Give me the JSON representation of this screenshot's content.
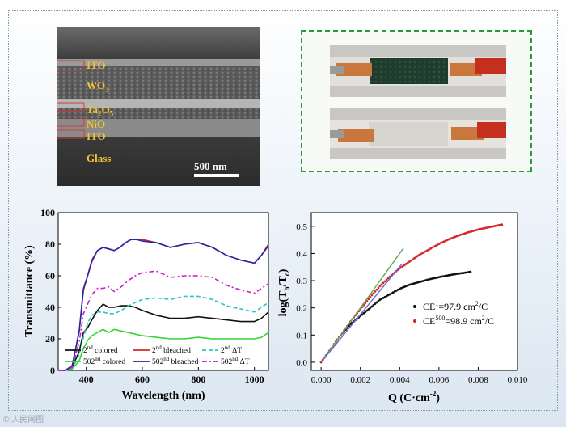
{
  "sem": {
    "layers": [
      {
        "name": "ITO",
        "sub": ""
      },
      {
        "name": "WO",
        "sub": "3"
      },
      {
        "name": "Ta",
        "sub": "2",
        "tail": "O",
        "sub2": "5"
      },
      {
        "name": "NiO",
        "sub": ""
      },
      {
        "name": "ITO",
        "sub": ""
      },
      {
        "name": "Glass",
        "sub": ""
      }
    ],
    "scale_bar": "500 nm"
  },
  "photos": {
    "top_state": "colored",
    "bottom_state": "bleached"
  },
  "colors": {
    "black": "#111111",
    "red": "#d62728",
    "cyan": "#2bc4c9",
    "green": "#33d633",
    "blue": "#2626a8",
    "magenta": "#c71fc7",
    "fit_green": "#58b058",
    "fit_blue": "#6a6ad6",
    "panel_border": "#2a9a3a"
  },
  "watermark": "© 人民网图",
  "chart_data": [
    {
      "type": "line",
      "xlabel": "Wavelength (nm)",
      "ylabel": "Transmittance (%)",
      "xlim": [
        300,
        1050
      ],
      "ylim": [
        0,
        100
      ],
      "xticks": [
        400,
        600,
        800,
        1000
      ],
      "yticks": [
        0,
        20,
        40,
        60,
        80,
        100
      ],
      "legend_position": "bottom",
      "series": [
        {
          "name": "colored",
          "pre": "2",
          "sup": "nd",
          "color": "black",
          "dash": "",
          "x": [
            300,
            325,
            350,
            375,
            390,
            405,
            420,
            440,
            460,
            480,
            500,
            525,
            550,
            575,
            600,
            650,
            700,
            750,
            800,
            850,
            900,
            950,
            1000,
            1025,
            1050
          ],
          "y": [
            0,
            0,
            2,
            12,
            24,
            27,
            32,
            38,
            42,
            40,
            40,
            41,
            41,
            40,
            38,
            35,
            33,
            33,
            34,
            33,
            32,
            31,
            31,
            33,
            37
          ]
        },
        {
          "name": "bleached",
          "pre": "2",
          "sup": "nd",
          "color": "red",
          "dash": "",
          "x": [
            300,
            325,
            350,
            375,
            390,
            405,
            420,
            440,
            460,
            480,
            500,
            520,
            540,
            560,
            580,
            600,
            650,
            700,
            750,
            800,
            850,
            900,
            950,
            1000,
            1025,
            1050
          ],
          "y": [
            0,
            0,
            3,
            25,
            52,
            60,
            70,
            76,
            78,
            77,
            76,
            78,
            81,
            83,
            83,
            83,
            81,
            78,
            80,
            81,
            78,
            73,
            70,
            68,
            73,
            80
          ]
        },
        {
          "name": "ΔT",
          "pre": "2",
          "sup": "nd",
          "color": "cyan",
          "dash": "5,3",
          "x": [
            300,
            325,
            350,
            375,
            390,
            405,
            420,
            440,
            460,
            480,
            500,
            525,
            550,
            575,
            600,
            650,
            700,
            750,
            800,
            850,
            900,
            950,
            1000,
            1025,
            1050
          ],
          "y": [
            0,
            0,
            1,
            10,
            21,
            30,
            35,
            37,
            37,
            36,
            36,
            38,
            41,
            43,
            45,
            46,
            45,
            47,
            47,
            45,
            41,
            39,
            37,
            40,
            43
          ]
        },
        {
          "name": "colored",
          "pre": "502",
          "sup": "nd",
          "color": "green",
          "dash": "",
          "x": [
            300,
            325,
            350,
            375,
            390,
            405,
            420,
            440,
            460,
            480,
            500,
            525,
            550,
            575,
            600,
            650,
            700,
            750,
            800,
            850,
            900,
            950,
            1000,
            1025,
            1050
          ],
          "y": [
            0,
            0,
            1,
            6,
            14,
            19,
            22,
            24,
            26,
            24,
            26,
            25,
            24,
            23,
            22,
            21,
            20,
            20,
            21,
            20,
            20,
            20,
            20,
            21,
            24
          ]
        },
        {
          "name": "bleached",
          "pre": "502",
          "sup": "nd",
          "color": "blue",
          "dash": "",
          "x": [
            300,
            325,
            350,
            375,
            390,
            405,
            420,
            440,
            460,
            480,
            500,
            520,
            540,
            560,
            580,
            600,
            650,
            700,
            750,
            800,
            850,
            900,
            950,
            1000,
            1025,
            1050
          ],
          "y": [
            0,
            0,
            3,
            25,
            51,
            60,
            69,
            76,
            78,
            77,
            76,
            78,
            81,
            83,
            83,
            82,
            81,
            78,
            80,
            81,
            78,
            73,
            70,
            68,
            73,
            79
          ]
        },
        {
          "name": "ΔT",
          "pre": "502",
          "sup": "nd",
          "color": "magenta",
          "dash": "6,3,2,3",
          "x": [
            300,
            325,
            350,
            375,
            390,
            405,
            420,
            440,
            460,
            480,
            500,
            525,
            550,
            575,
            600,
            650,
            700,
            750,
            800,
            850,
            900,
            950,
            1000,
            1025,
            1050
          ],
          "y": [
            0,
            0,
            2,
            18,
            36,
            42,
            48,
            52,
            52,
            53,
            50,
            53,
            57,
            60,
            62,
            63,
            59,
            60,
            60,
            59,
            54,
            51,
            49,
            52,
            55
          ]
        }
      ]
    },
    {
      "type": "scatter",
      "xlabel": "Q (C·cm",
      "xlabel_sup": "-2",
      "xlabel_end": ")",
      "ylabel_main": "log(T",
      "ylabel_sub1": "b",
      "ylabel_mid": "/T",
      "ylabel_sub2": "c",
      "ylabel_end": ")",
      "xlim": [
        -0.0005,
        0.01
      ],
      "ylim": [
        -0.03,
        0.55
      ],
      "xticks": [
        "0.000",
        "0.002",
        "0.004",
        "0.006",
        "0.008",
        "0.010"
      ],
      "xtick_values": [
        0,
        0.002,
        0.004,
        0.006,
        0.008,
        0.01
      ],
      "yticks": [
        "0.0",
        "0.1",
        "0.2",
        "0.3",
        "0.4",
        "0.5"
      ],
      "ytick_values": [
        0,
        0.1,
        0.2,
        0.3,
        0.4,
        0.5
      ],
      "legend_position": "right",
      "series": [
        {
          "name_pre": "CE",
          "name_sup": "1",
          "name_post": "=97.9 cm",
          "name_sup2": "2",
          "name_end": "/C",
          "color": "black",
          "x": [
            0,
            0.0005,
            0.001,
            0.0015,
            0.002,
            0.0025,
            0.003,
            0.0035,
            0.004,
            0.0045,
            0.005,
            0.0055,
            0.006,
            0.0065,
            0.007,
            0.0075,
            0.0076
          ],
          "y": [
            0,
            0.05,
            0.1,
            0.14,
            0.17,
            0.2,
            0.23,
            0.25,
            0.27,
            0.285,
            0.295,
            0.305,
            0.313,
            0.32,
            0.326,
            0.331,
            0.332
          ]
        },
        {
          "name_pre": "CE",
          "name_sup": "500",
          "name_post": "=98.9 cm",
          "name_sup2": "2",
          "name_end": "/C",
          "color": "red",
          "x": [
            0,
            0.0005,
            0.001,
            0.0015,
            0.002,
            0.0025,
            0.003,
            0.0035,
            0.004,
            0.0045,
            0.005,
            0.0055,
            0.006,
            0.0065,
            0.007,
            0.0075,
            0.008,
            0.0085,
            0.009,
            0.0092
          ],
          "y": [
            0,
            0.05,
            0.1,
            0.15,
            0.195,
            0.24,
            0.28,
            0.315,
            0.345,
            0.37,
            0.395,
            0.415,
            0.435,
            0.452,
            0.466,
            0.478,
            0.488,
            0.496,
            0.503,
            0.506
          ]
        }
      ],
      "fits": [
        {
          "color": "fit_green",
          "x": [
            0,
            0.0042
          ],
          "y": [
            0,
            0.42
          ]
        },
        {
          "color": "fit_blue",
          "x": [
            0,
            0.0041
          ],
          "y": [
            0,
            0.36
          ]
        }
      ]
    }
  ]
}
